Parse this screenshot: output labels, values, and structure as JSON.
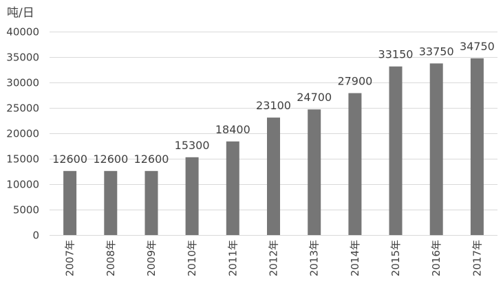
{
  "chart_data": {
    "type": "bar",
    "title": "",
    "ylabel": "吨/日",
    "xlabel": "",
    "categories": [
      "2007年",
      "2008年",
      "2009年",
      "2010年",
      "2011年",
      "2012年",
      "2013年",
      "2014年",
      "2015年",
      "2016年",
      "2017年"
    ],
    "values": [
      12600,
      12600,
      12600,
      15300,
      18400,
      23100,
      24700,
      27900,
      33150,
      33750,
      34750
    ],
    "ylim": [
      0,
      40000
    ],
    "yticks": [
      0,
      5000,
      10000,
      15000,
      20000,
      25000,
      30000,
      35000,
      40000
    ],
    "grid": true,
    "legend": "none",
    "bar_color": "#767676",
    "data_labels": true
  }
}
